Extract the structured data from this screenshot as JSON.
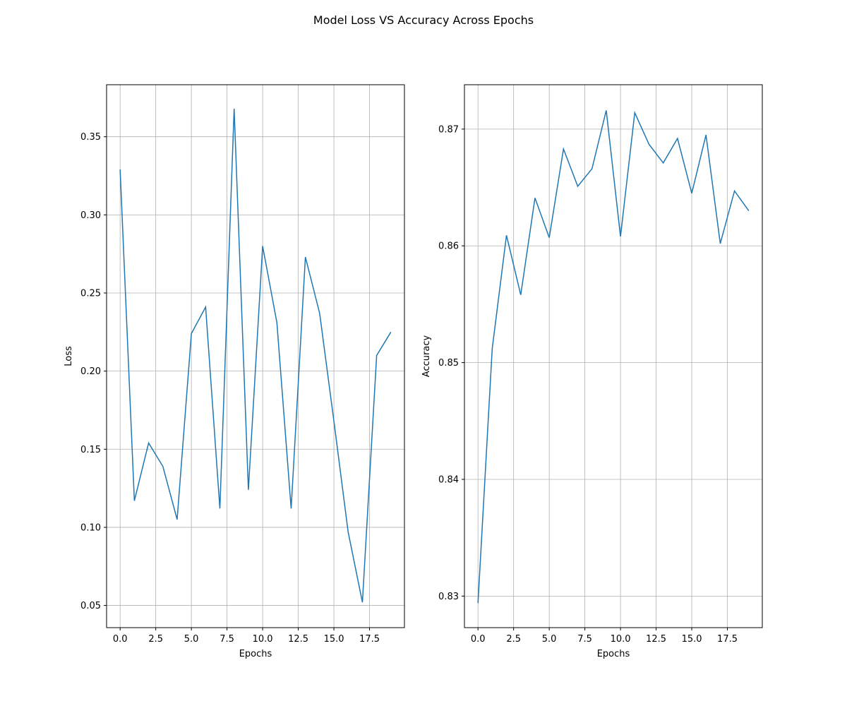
{
  "figure": {
    "title": "Model Loss VS Accuracy Across Epochs"
  },
  "colors": {
    "line": "#1f77b4",
    "grid": "#b0b0b0",
    "axes": "#000000"
  },
  "chart_data": [
    {
      "type": "line",
      "title": "",
      "xlabel": "Epochs",
      "ylabel": "Loss",
      "grid": true,
      "xlim": [
        -0.95,
        19.95
      ],
      "ylim": [
        0.0358,
        0.3833
      ],
      "xticks": [
        0.0,
        2.5,
        5.0,
        7.5,
        10.0,
        12.5,
        15.0,
        17.5
      ],
      "xtick_labels": [
        "0.0",
        "2.5",
        "5.0",
        "7.5",
        "10.0",
        "12.5",
        "15.0",
        "17.5"
      ],
      "yticks": [
        0.05,
        0.1,
        0.15,
        0.2,
        0.25,
        0.3,
        0.35
      ],
      "ytick_labels": [
        "0.05",
        "0.10",
        "0.15",
        "0.20",
        "0.25",
        "0.30",
        "0.35"
      ],
      "series": [
        {
          "x": [
            0,
            1,
            2,
            3,
            4,
            5,
            6,
            7,
            8,
            9,
            10,
            11,
            12,
            13,
            14,
            15,
            16,
            17,
            18,
            19
          ],
          "values": [
            0.329,
            0.117,
            0.154,
            0.139,
            0.105,
            0.224,
            0.241,
            0.112,
            0.368,
            0.124,
            0.28,
            0.231,
            0.112,
            0.273,
            0.237,
            0.168,
            0.097,
            0.052,
            0.21,
            0.225
          ]
        }
      ]
    },
    {
      "type": "line",
      "title": "",
      "xlabel": "Epochs",
      "ylabel": "Accuracy",
      "grid": true,
      "xlim": [
        -0.95,
        19.95
      ],
      "ylim": [
        0.8273,
        0.8738
      ],
      "xticks": [
        0.0,
        2.5,
        5.0,
        7.5,
        10.0,
        12.5,
        15.0,
        17.5
      ],
      "xtick_labels": [
        "0.0",
        "2.5",
        "5.0",
        "7.5",
        "10.0",
        "12.5",
        "15.0",
        "17.5"
      ],
      "yticks": [
        0.83,
        0.84,
        0.85,
        0.86,
        0.87
      ],
      "ytick_labels": [
        "0.83",
        "0.84",
        "0.85",
        "0.86",
        "0.87"
      ],
      "series": [
        {
          "x": [
            0,
            1,
            2,
            3,
            4,
            5,
            6,
            7,
            8,
            9,
            10,
            11,
            12,
            13,
            14,
            15,
            16,
            17,
            18,
            19
          ],
          "values": [
            0.8294,
            0.8512,
            0.8609,
            0.8558,
            0.8641,
            0.8607,
            0.8683,
            0.8651,
            0.8666,
            0.8716,
            0.8608,
            0.8714,
            0.8687,
            0.8671,
            0.8692,
            0.8645,
            0.8695,
            0.8602,
            0.8647,
            0.863
          ]
        }
      ]
    }
  ]
}
